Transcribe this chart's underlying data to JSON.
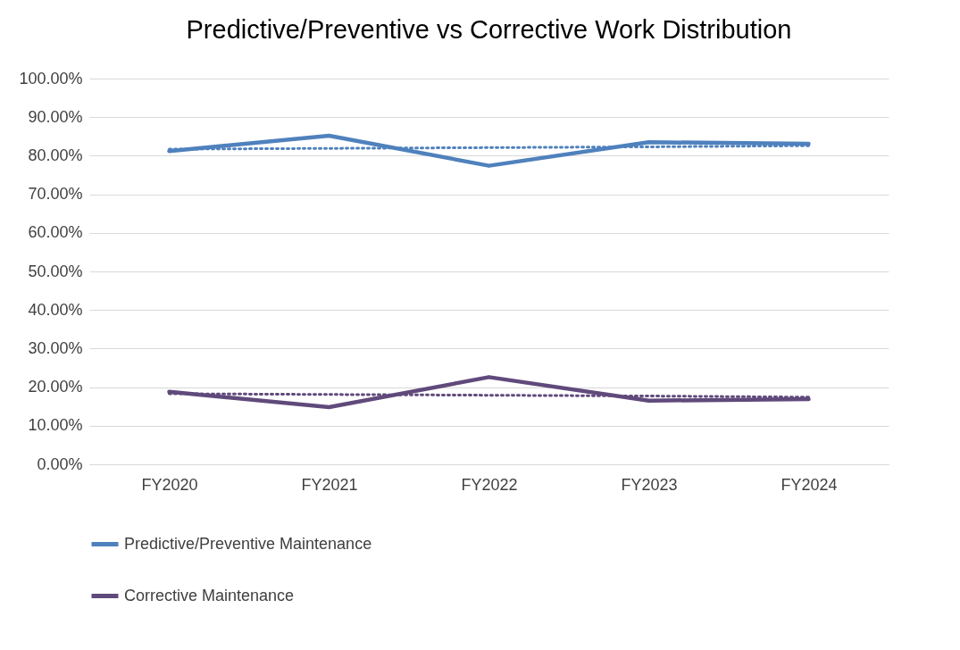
{
  "chart_data": {
    "type": "line",
    "title": "Predictive/Preventive vs Corrective Work Distribution",
    "categories": [
      "FY2020",
      "FY2021",
      "FY2022",
      "FY2023",
      "FY2024"
    ],
    "series": [
      {
        "name": "Predictive/Preventive Maintenance",
        "color": "#4f81bd",
        "values": [
          81.2,
          85.2,
          77.4,
          83.5,
          83.1
        ]
      },
      {
        "name": "Corrective Maintenance",
        "color": "#604a7b",
        "values": [
          18.8,
          14.8,
          22.6,
          16.5,
          16.9
        ]
      },
      {
        "type": "line",
        "line_style": "dotted",
        "color": "#4f81bd",
        "values": [
          81.7,
          81.9,
          82.1,
          82.3,
          82.6
        ]
      },
      {
        "type": "line",
        "line_style": "dotted",
        "color": "#604a7b",
        "values": [
          18.3,
          18.1,
          17.9,
          17.7,
          17.4
        ]
      }
    ],
    "ylim": [
      0,
      100
    ],
    "yticks": [
      {
        "value": 0,
        "label": "0.00%"
      },
      {
        "value": 10,
        "label": "10.00%"
      },
      {
        "value": 20,
        "label": "20.00%"
      },
      {
        "value": 30,
        "label": "30.00%"
      },
      {
        "value": 40,
        "label": "40.00%"
      },
      {
        "value": 50,
        "label": "50.00%"
      },
      {
        "value": 60,
        "label": "60.00%"
      },
      {
        "value": 70,
        "label": "70.00%"
      },
      {
        "value": 80,
        "label": "80.00%"
      },
      {
        "value": 90,
        "label": "90.00%"
      },
      {
        "value": 100,
        "label": "100.00%"
      }
    ],
    "grid": "y",
    "legend": "bottom",
    "marker": "none",
    "line_style": "solid"
  }
}
